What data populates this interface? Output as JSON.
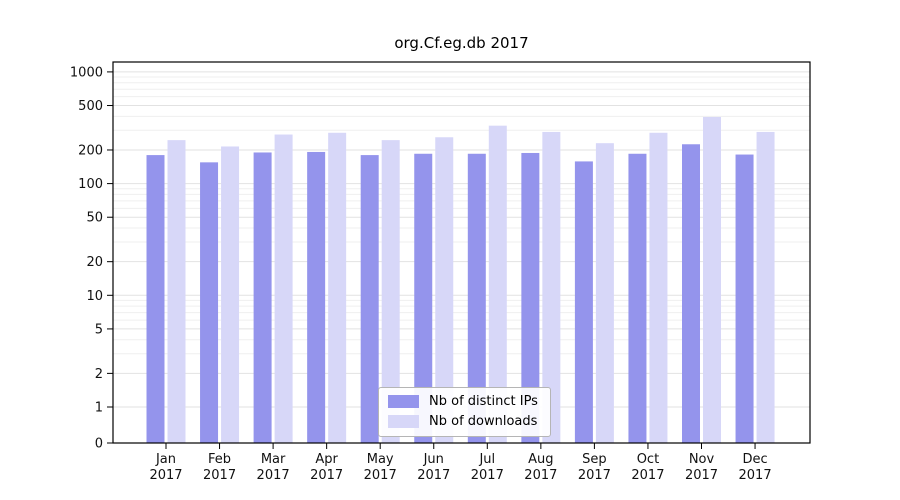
{
  "chart_data": {
    "type": "bar",
    "title": "org.Cf.eg.db 2017",
    "categories": [
      "Jan 2017",
      "Feb 2017",
      "Mar 2017",
      "Apr 2017",
      "May 2017",
      "Jun 2017",
      "Jul 2017",
      "Aug 2017",
      "Sep 2017",
      "Oct 2017",
      "Nov 2017",
      "Dec 2017"
    ],
    "series": [
      {
        "name": "Nb of distinct IPs",
        "color": "#9494ec",
        "values": [
          180,
          155,
          190,
          192,
          180,
          185,
          185,
          188,
          158,
          185,
          225,
          182
        ]
      },
      {
        "name": "Nb of downloads",
        "color": "#d7d7f8",
        "values": [
          245,
          215,
          275,
          285,
          245,
          260,
          330,
          290,
          230,
          285,
          395,
          290
        ]
      }
    ],
    "y_ticks": [
      0,
      1,
      2,
      5,
      10,
      20,
      50,
      100,
      200,
      500,
      1000
    ],
    "y_scale": "symlog",
    "ylim": [
      0,
      1000
    ],
    "grid": true,
    "legend_position": "bottom-center"
  }
}
